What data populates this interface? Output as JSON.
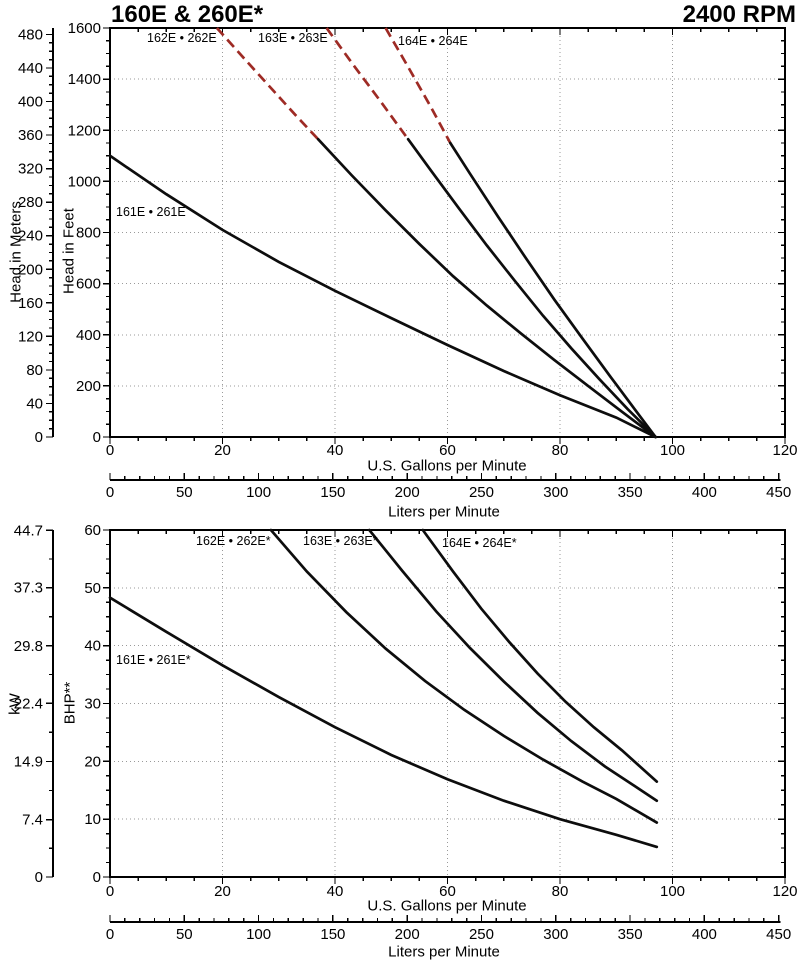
{
  "header": {
    "title": "160E & 260E*",
    "rpm": "2400 RPM"
  },
  "colors": {
    "curve": "#0d0d0d",
    "dashed_segment": "#9e2b25",
    "grid": "#9a9a9a",
    "background": "#ffffff"
  },
  "chart_data": [
    {
      "type": "line",
      "title": "160E & 260E*",
      "subtitle": "2400 RPM",
      "xlabel": "U.S. Gallons per Minute",
      "x2label": "Liters per Minute",
      "ylabel": "Head in Feet",
      "y2label": "Head in Meters",
      "xlim": [
        0,
        120
      ],
      "ylim": [
        0,
        1600
      ],
      "x_ticks": [
        0,
        20,
        40,
        60,
        80,
        100,
        120
      ],
      "x_minor_step": 5,
      "y_ticks": [
        0,
        200,
        400,
        600,
        800,
        1000,
        1200,
        1400,
        1600
      ],
      "y_minor_step": 50,
      "y2_ticks": [
        0,
        40,
        80,
        120,
        160,
        200,
        240,
        280,
        320,
        360,
        400,
        440,
        480
      ],
      "y2_minor_step": 10,
      "y2_factor": 3.28084,
      "x2_ticks": [
        0,
        50,
        100,
        150,
        200,
        250,
        300,
        350,
        400,
        450
      ],
      "x2_minor_step": 10,
      "x2_factor": 3.785412,
      "grid": true,
      "series": [
        {
          "name": "161E • 261E",
          "solid": [
            [
              0,
              1100
            ],
            [
              10,
              950
            ],
            [
              20,
              810
            ],
            [
              30,
              685
            ],
            [
              40,
              572
            ],
            [
              50,
              465
            ],
            [
              60,
              360
            ],
            [
              70,
              258
            ],
            [
              80,
              163
            ],
            [
              90,
              76
            ],
            [
              97,
              0
            ]
          ]
        },
        {
          "name": "162E • 262E",
          "dashed": [
            [
              19,
              1600
            ],
            [
              24,
              1477
            ],
            [
              29,
              1356
            ],
            [
              33,
              1259
            ],
            [
              37,
              1165
            ]
          ],
          "solid": [
            [
              37,
              1165
            ],
            [
              43,
              1023
            ],
            [
              49,
              887
            ],
            [
              55,
              755
            ],
            [
              61,
              629
            ],
            [
              67,
              514
            ],
            [
              73,
              406
            ],
            [
              79,
              301
            ],
            [
              85,
              200
            ],
            [
              91,
              99
            ],
            [
              97,
              0
            ]
          ]
        },
        {
          "name": "163E • 263E",
          "dashed": [
            [
              38.5,
              1600
            ],
            [
              43,
              1463
            ],
            [
              48,
              1316
            ],
            [
              53,
              1165
            ]
          ],
          "solid": [
            [
              53,
              1165
            ],
            [
              57,
              1044
            ],
            [
              62,
              895
            ],
            [
              67,
              749
            ],
            [
              72,
              610
            ],
            [
              77,
              474
            ],
            [
              82,
              347
            ],
            [
              87,
              226
            ],
            [
              92,
              110
            ],
            [
              97,
              0
            ]
          ]
        },
        {
          "name": "164E • 264E",
          "dashed": [
            [
              49,
              1600
            ],
            [
              53,
              1448
            ],
            [
              57,
              1293
            ],
            [
              60.5,
              1150
            ]
          ],
          "solid": [
            [
              60.5,
              1150
            ],
            [
              64,
              1030
            ],
            [
              69,
              862
            ],
            [
              74,
              697
            ],
            [
              79,
              537
            ],
            [
              84,
              385
            ],
            [
              89,
              235
            ],
            [
              93,
              117
            ],
            [
              97,
              0
            ]
          ]
        }
      ]
    },
    {
      "type": "line",
      "xlabel": "U.S. Gallons per Minute",
      "x2label": "Liters per Minute",
      "ylabel": "BHP**",
      "y2label": "kW",
      "xlim": [
        0,
        120
      ],
      "ylim": [
        0,
        60
      ],
      "x_ticks": [
        0,
        20,
        40,
        60,
        80,
        100,
        120
      ],
      "x_minor_step": 5,
      "y_ticks": [
        0,
        10,
        20,
        30,
        40,
        50,
        60
      ],
      "y_minor_step": 2.5,
      "y2_ticks": [
        0,
        7.4,
        14.9,
        22.4,
        29.8,
        37.3,
        44.7
      ],
      "y2_minors": [
        3.7,
        11.15,
        18.65,
        26.1,
        33.55,
        41.0
      ],
      "y2_factor": 1.34103,
      "x2_ticks": [
        0,
        50,
        100,
        150,
        200,
        250,
        300,
        350,
        400,
        450
      ],
      "x2_minor_step": 10,
      "x2_factor": 3.785412,
      "grid": true,
      "series": [
        {
          "name": "161E • 261E*",
          "solid": [
            [
              0,
              48.3
            ],
            [
              10,
              42.4
            ],
            [
              20,
              36.6
            ],
            [
              30,
              31.1
            ],
            [
              40,
              25.9
            ],
            [
              50,
              21.1
            ],
            [
              60,
              16.9
            ],
            [
              70,
              13.2
            ],
            [
              80,
              10.0
            ],
            [
              90,
              7.3
            ],
            [
              97.2,
              5.2
            ]
          ]
        },
        {
          "name": "162E • 262E*",
          "solid": [
            [
              28.6,
              60
            ],
            [
              35,
              52.8
            ],
            [
              42,
              45.8
            ],
            [
              49,
              39.5
            ],
            [
              56,
              33.9
            ],
            [
              63,
              28.9
            ],
            [
              70,
              24.4
            ],
            [
              77,
              20.3
            ],
            [
              84,
              16.5
            ],
            [
              90,
              13.5
            ],
            [
              97.2,
              9.4
            ]
          ]
        },
        {
          "name": "163E • 263E*",
          "solid": [
            [
              46.1,
              60
            ],
            [
              52,
              52.9
            ],
            [
              58,
              45.9
            ],
            [
              64,
              39.6
            ],
            [
              70,
              33.8
            ],
            [
              76,
              28.4
            ],
            [
              82,
              23.5
            ],
            [
              88,
              19.1
            ],
            [
              93,
              15.9
            ],
            [
              97.2,
              13.2
            ]
          ]
        },
        {
          "name": "164E • 264E*",
          "solid": [
            [
              55.6,
              60
            ],
            [
              61,
              52.8
            ],
            [
              66,
              46.4
            ],
            [
              71,
              40.6
            ],
            [
              76,
              35.2
            ],
            [
              81,
              30.3
            ],
            [
              86,
              25.9
            ],
            [
              91,
              21.9
            ],
            [
              97.2,
              16.5
            ]
          ]
        }
      ]
    }
  ]
}
